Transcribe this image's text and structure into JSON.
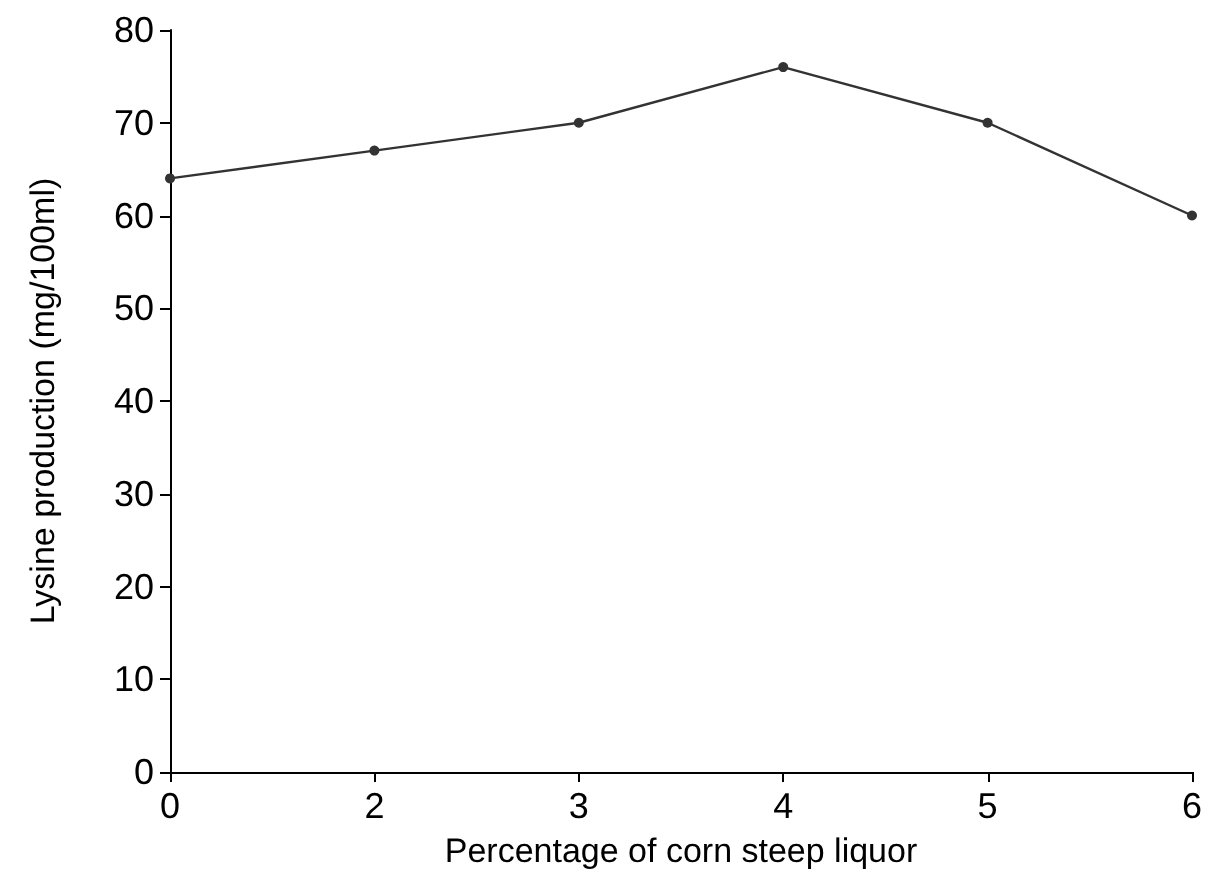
{
  "chart_data": {
    "type": "line",
    "xlabel": "Percentage of corn steep liquor",
    "ylabel": "Lysine production (mg/100ml)",
    "categories": [
      "0",
      "2",
      "3",
      "4",
      "5",
      "6"
    ],
    "series": [
      {
        "color": "#333333",
        "values": [
          64,
          67,
          70,
          76,
          70,
          60
        ]
      }
    ],
    "ylim": [
      0,
      80
    ],
    "yticks": [
      0,
      10,
      20,
      30,
      40,
      50,
      60,
      70,
      80
    ],
    "grid": false,
    "marker": "circle",
    "line_style": "solid"
  }
}
